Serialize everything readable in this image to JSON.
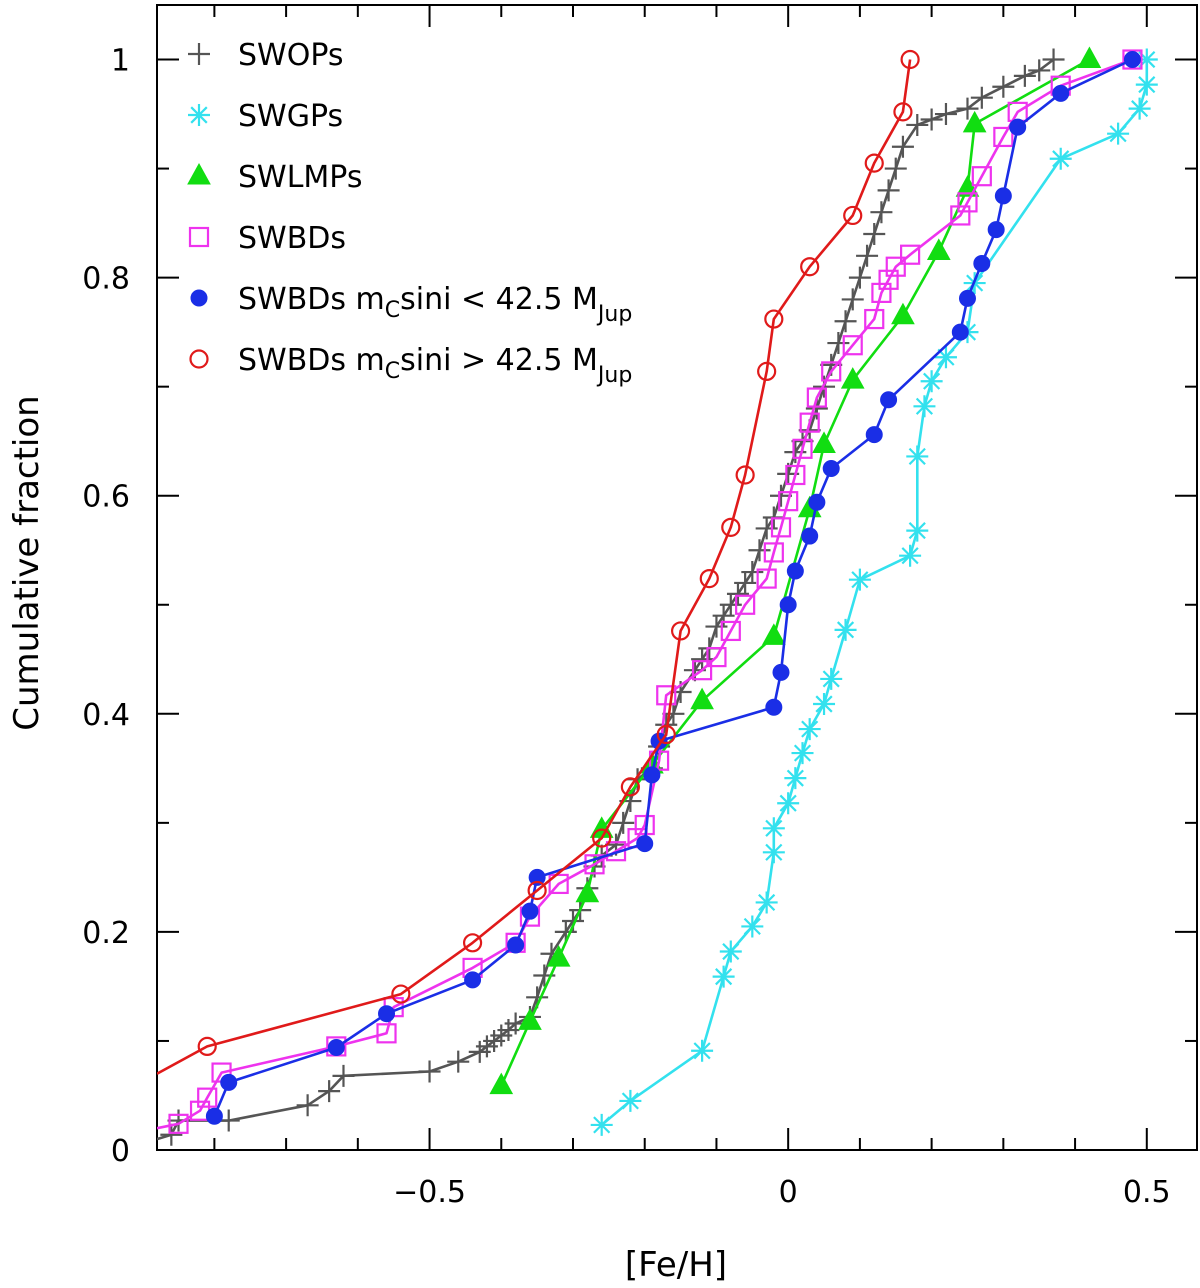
{
  "chart_data": {
    "type": "line",
    "title": "",
    "xlabel": "[Fe/H]",
    "ylabel": "Cumulative fraction",
    "xlim": [
      -0.88,
      0.57
    ],
    "ylim": [
      0,
      1.05
    ],
    "x_ticks": [
      -0.5,
      0,
      0.5
    ],
    "x_tick_labels": [
      "−0.5",
      "0",
      "0.5"
    ],
    "y_ticks": [
      0,
      0.2,
      0.4,
      0.6,
      0.8,
      1
    ],
    "y_tick_labels": [
      "0",
      "0.2",
      "0.4",
      "0.6",
      "0.8",
      "1"
    ],
    "legend_position": "top-left",
    "series": [
      {
        "name": "SWOPs",
        "legend": {
          "text": "SWOPs"
        },
        "color": "#555555",
        "marker": "plus",
        "x": [
          -0.86,
          -0.85,
          -0.78,
          -0.67,
          -0.64,
          -0.62,
          -0.5,
          -0.46,
          -0.43,
          -0.42,
          -0.41,
          -0.4,
          -0.39,
          -0.38,
          -0.36,
          -0.35,
          -0.34,
          -0.33,
          -0.31,
          -0.3,
          -0.29,
          -0.28,
          -0.27,
          -0.26,
          -0.24,
          -0.23,
          -0.22,
          -0.21,
          -0.19,
          -0.18,
          -0.17,
          -0.16,
          -0.15,
          -0.13,
          -0.12,
          -0.11,
          -0.1,
          -0.09,
          -0.08,
          -0.07,
          -0.06,
          -0.05,
          -0.04,
          -0.03,
          -0.02,
          -0.01,
          0.0,
          0.01,
          0.02,
          0.03,
          0.04,
          0.05,
          0.06,
          0.07,
          0.08,
          0.09,
          0.1,
          0.11,
          0.12,
          0.13,
          0.14,
          0.15,
          0.16,
          0.18,
          0.2,
          0.22,
          0.25,
          0.27,
          0.3,
          0.33,
          0.35,
          0.37
        ],
        "y": [
          0.014,
          0.027,
          0.027,
          0.041,
          0.054,
          0.068,
          0.072,
          0.081,
          0.09,
          0.095,
          0.1,
          0.105,
          0.11,
          0.116,
          0.122,
          0.14,
          0.16,
          0.18,
          0.2,
          0.21,
          0.22,
          0.24,
          0.26,
          0.27,
          0.28,
          0.3,
          0.32,
          0.34,
          0.35,
          0.37,
          0.39,
          0.4,
          0.42,
          0.44,
          0.45,
          0.46,
          0.48,
          0.49,
          0.5,
          0.51,
          0.52,
          0.53,
          0.55,
          0.57,
          0.58,
          0.6,
          0.62,
          0.64,
          0.65,
          0.66,
          0.68,
          0.7,
          0.72,
          0.74,
          0.76,
          0.78,
          0.8,
          0.82,
          0.84,
          0.86,
          0.88,
          0.9,
          0.92,
          0.94,
          0.945,
          0.95,
          0.955,
          0.965,
          0.975,
          0.985,
          0.99,
          1.0
        ]
      },
      {
        "name": "SWGPs",
        "legend": {
          "text": "SWGPs"
        },
        "color": "#33e1ee",
        "marker": "asterisk",
        "x": [
          -0.26,
          -0.22,
          -0.12,
          -0.09,
          -0.08,
          -0.05,
          -0.03,
          -0.02,
          -0.02,
          0.0,
          0.01,
          0.02,
          0.03,
          0.05,
          0.06,
          0.08,
          0.1,
          0.17,
          0.18,
          0.18,
          0.19,
          0.2,
          0.22,
          0.25,
          0.26,
          0.38,
          0.46,
          0.49,
          0.5,
          0.5
        ],
        "y": [
          0.023,
          0.045,
          0.091,
          0.159,
          0.182,
          0.205,
          0.227,
          0.273,
          0.295,
          0.318,
          0.341,
          0.364,
          0.386,
          0.409,
          0.432,
          0.477,
          0.523,
          0.545,
          0.568,
          0.636,
          0.682,
          0.705,
          0.727,
          0.75,
          0.795,
          0.909,
          0.932,
          0.955,
          0.977,
          1.0
        ]
      },
      {
        "name": "SWLMPs",
        "legend": {
          "text": "SWLMPs"
        },
        "color": "#11dd11",
        "marker": "triangle",
        "x": [
          -0.4,
          -0.36,
          -0.32,
          -0.28,
          -0.26,
          -0.19,
          -0.12,
          -0.02,
          0.03,
          0.05,
          0.09,
          0.16,
          0.21,
          0.25,
          0.26,
          0.42
        ],
        "y": [
          0.059,
          0.118,
          0.176,
          0.235,
          0.294,
          0.353,
          0.412,
          0.471,
          0.588,
          0.647,
          0.706,
          0.765,
          0.824,
          0.882,
          0.941,
          1.0
        ]
      },
      {
        "name": "SWBDs",
        "legend": {
          "text": "SWBDs"
        },
        "color": "#ee33ee",
        "marker": "square",
        "x": [
          -0.85,
          -0.82,
          -0.81,
          -0.79,
          -0.63,
          -0.56,
          -0.55,
          -0.44,
          -0.38,
          -0.36,
          -0.32,
          -0.27,
          -0.24,
          -0.21,
          -0.2,
          -0.18,
          -0.17,
          -0.12,
          -0.1,
          -0.08,
          -0.06,
          -0.03,
          -0.02,
          -0.01,
          0.0,
          0.01,
          0.02,
          0.03,
          0.04,
          0.06,
          0.09,
          0.12,
          0.13,
          0.14,
          0.15,
          0.17,
          0.24,
          0.25,
          0.27,
          0.3,
          0.32,
          0.38,
          0.48
        ],
        "y": [
          0.024,
          0.036,
          0.048,
          0.071,
          0.095,
          0.107,
          0.131,
          0.167,
          0.19,
          0.214,
          0.244,
          0.262,
          0.274,
          0.286,
          0.298,
          0.357,
          0.417,
          0.44,
          0.452,
          0.476,
          0.5,
          0.524,
          0.548,
          0.571,
          0.595,
          0.619,
          0.643,
          0.667,
          0.69,
          0.714,
          0.738,
          0.762,
          0.786,
          0.798,
          0.81,
          0.821,
          0.857,
          0.869,
          0.893,
          0.929,
          0.952,
          0.976,
          1.0
        ]
      },
      {
        "name": "SWBDs mCsini < 42.5 MJup",
        "legend": {
          "pre": "SWBDs  m",
          "sub1": "C",
          "mid": "sini  <  42.5  M",
          "sub2": "Jup"
        },
        "color": "#1a2ee6",
        "marker": "filled-circle",
        "x": [
          -0.8,
          -0.78,
          -0.63,
          -0.56,
          -0.44,
          -0.38,
          -0.36,
          -0.35,
          -0.2,
          -0.19,
          -0.18,
          -0.02,
          -0.01,
          0.0,
          0.01,
          0.03,
          0.04,
          0.06,
          0.12,
          0.14,
          0.24,
          0.25,
          0.27,
          0.29,
          0.3,
          0.32,
          0.38,
          0.48
        ],
        "y": [
          0.031,
          0.062,
          0.094,
          0.125,
          0.156,
          0.188,
          0.219,
          0.25,
          0.281,
          0.344,
          0.375,
          0.406,
          0.438,
          0.5,
          0.531,
          0.563,
          0.594,
          0.625,
          0.656,
          0.688,
          0.75,
          0.781,
          0.813,
          0.844,
          0.875,
          0.938,
          0.969,
          1.0
        ]
      },
      {
        "name": "SWBDs mCsini > 42.5 MJup",
        "legend": {
          "pre": "SWBDs  m",
          "sub1": "C",
          "mid": "sini  >  42.5  M",
          "sub2": "Jup"
        },
        "color": "#e01a1a",
        "marker": "open-circle",
        "x": [
          -0.81,
          -0.54,
          -0.44,
          -0.35,
          -0.26,
          -0.22,
          -0.17,
          -0.15,
          -0.11,
          -0.08,
          -0.06,
          -0.03,
          -0.02,
          0.03,
          0.09,
          0.12,
          0.16,
          0.17
        ],
        "y": [
          0.095,
          0.143,
          0.19,
          0.238,
          0.286,
          0.333,
          0.381,
          0.476,
          0.524,
          0.571,
          0.619,
          0.714,
          0.762,
          0.81,
          0.857,
          0.905,
          0.952,
          1.0
        ]
      }
    ]
  }
}
